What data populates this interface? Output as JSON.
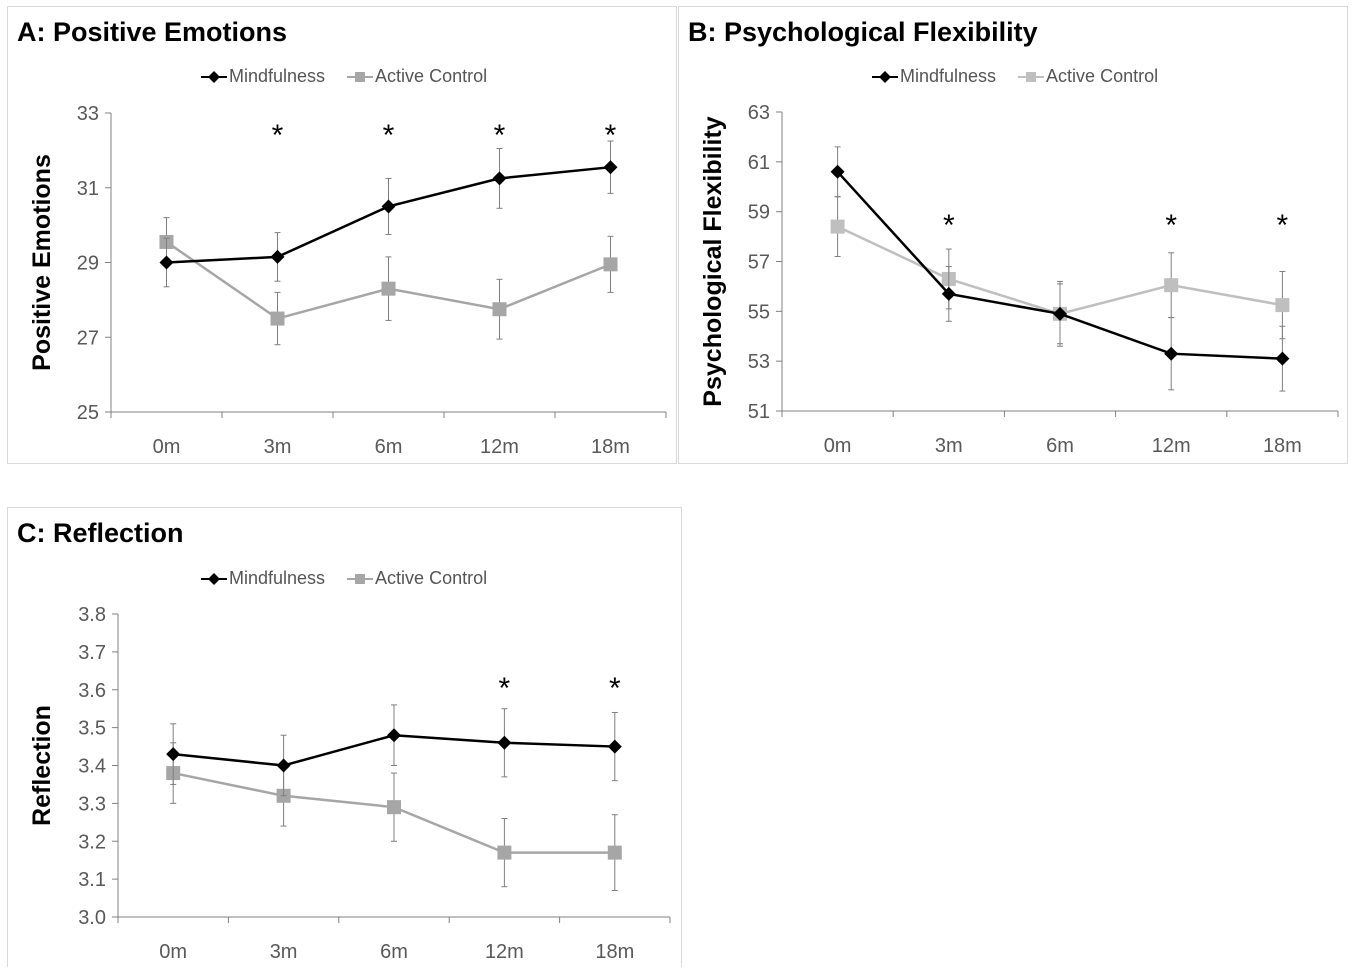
{
  "legend": {
    "series1": "Mindfulness",
    "series2": "Active Control"
  },
  "chart_data": [
    {
      "type": "line",
      "title": "A: Positive Emotions",
      "ylabel": "Positive Emotions",
      "xlabel": "",
      "categories": [
        "0m",
        "3m",
        "6m",
        "12m",
        "18m"
      ],
      "ylim": [
        25,
        33
      ],
      "yticks": [
        "25",
        "27",
        "29",
        "31",
        "33"
      ],
      "grid": false,
      "legend_position": "top",
      "significance": [
        false,
        true,
        true,
        true,
        true
      ],
      "series": [
        {
          "name": "Mindfulness",
          "color": "#000000",
          "marker": "diamond",
          "values": [
            29.0,
            29.15,
            30.5,
            31.25,
            31.55
          ],
          "errors": [
            0.65,
            0.65,
            0.75,
            0.8,
            0.7
          ]
        },
        {
          "name": "Active Control",
          "color": "#a6a6a6",
          "marker": "square",
          "values": [
            29.55,
            27.5,
            28.3,
            27.75,
            28.95
          ],
          "errors": [
            0.65,
            0.7,
            0.85,
            0.8,
            0.75
          ]
        }
      ]
    },
    {
      "type": "line",
      "title": "B: Psychological Flexibility",
      "ylabel": "Psychological Flexibility",
      "xlabel": "",
      "categories": [
        "0m",
        "3m",
        "6m",
        "12m",
        "18m"
      ],
      "ylim": [
        51,
        63
      ],
      "yticks": [
        "51",
        "53",
        "55",
        "57",
        "59",
        "61",
        "63"
      ],
      "grid": false,
      "legend_position": "top",
      "significance": [
        false,
        true,
        false,
        true,
        true
      ],
      "series": [
        {
          "name": "Mindfulness",
          "color": "#000000",
          "marker": "diamond",
          "values": [
            60.6,
            55.7,
            54.9,
            53.3,
            53.1
          ],
          "errors": [
            1.0,
            1.1,
            1.2,
            1.45,
            1.3
          ]
        },
        {
          "name": "Active Control",
          "color": "#bfbfbf",
          "marker": "square",
          "values": [
            58.4,
            56.3,
            54.9,
            56.05,
            55.25
          ],
          "errors": [
            1.2,
            1.2,
            1.3,
            1.3,
            1.35
          ]
        }
      ]
    },
    {
      "type": "line",
      "title": "C: Reflection",
      "ylabel": "Reflection",
      "xlabel": "",
      "categories": [
        "0m",
        "3m",
        "6m",
        "12m",
        "18m"
      ],
      "ylim": [
        3.0,
        3.8
      ],
      "yticks": [
        "3.0",
        "3.1",
        "3.2",
        "3.3",
        "3.4",
        "3.5",
        "3.6",
        "3.7",
        "3.8"
      ],
      "grid": false,
      "legend_position": "top",
      "significance": [
        false,
        false,
        false,
        true,
        true
      ],
      "series": [
        {
          "name": "Mindfulness",
          "color": "#000000",
          "marker": "diamond",
          "values": [
            3.43,
            3.4,
            3.48,
            3.46,
            3.45
          ],
          "errors": [
            0.08,
            0.08,
            0.08,
            0.09,
            0.09
          ]
        },
        {
          "name": "Active Control",
          "color": "#a6a6a6",
          "marker": "square",
          "values": [
            3.38,
            3.32,
            3.29,
            3.17,
            3.17
          ],
          "errors": [
            0.08,
            0.08,
            0.09,
            0.09,
            0.1
          ]
        }
      ]
    }
  ]
}
